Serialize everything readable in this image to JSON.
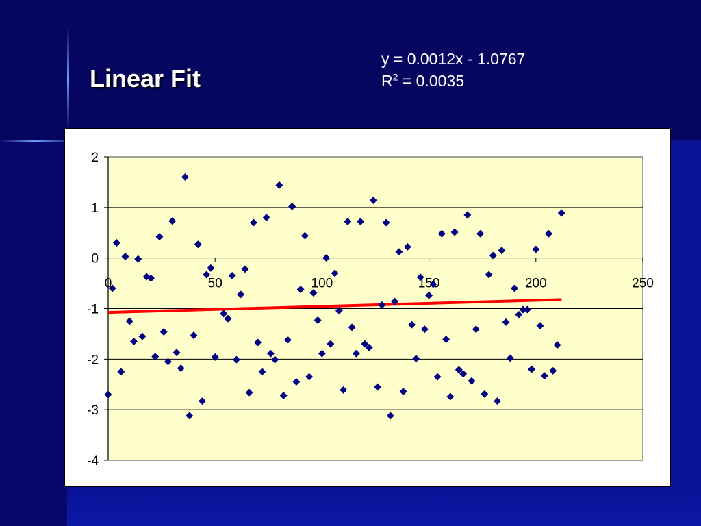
{
  "slide": {
    "title": "Linear Fit",
    "equation_line": "y = 0.0012x - 1.0767",
    "r2_prefix": "R",
    "r2_sup": "2",
    "r2_value": " = 0.0035"
  },
  "colors": {
    "slide_background": "#0a0a5e",
    "plot_background": "#ffffcc",
    "marker": "#000080",
    "trendline": "#ff0000",
    "title_text": "#ffffff"
  },
  "chart_data": {
    "type": "scatter",
    "title": "",
    "xlabel": "",
    "ylabel": "",
    "xlim": [
      0,
      250
    ],
    "ylim": [
      -4,
      2
    ],
    "x_ticks": [
      "0",
      "50",
      "100",
      "150",
      "200",
      "250"
    ],
    "y_ticks": [
      "2",
      "1",
      "0",
      "-1",
      "-2",
      "-3",
      "-4"
    ],
    "grid": "horizontal",
    "legend": "none",
    "marker_shape": "diamond",
    "points": [
      [
        0,
        -2.7
      ],
      [
        2,
        -0.6
      ],
      [
        4,
        0.3
      ],
      [
        6,
        -2.25
      ],
      [
        8,
        0.03
      ],
      [
        10,
        -1.25
      ],
      [
        12,
        -1.65
      ],
      [
        14,
        -0.02
      ],
      [
        16,
        -1.55
      ],
      [
        18,
        -0.37
      ],
      [
        20,
        -0.4
      ],
      [
        22,
        -1.95
      ],
      [
        24,
        0.42
      ],
      [
        26,
        -1.46
      ],
      [
        28,
        -2.05
      ],
      [
        30,
        0.73
      ],
      [
        32,
        -1.87
      ],
      [
        34,
        -2.18
      ],
      [
        36,
        1.6
      ],
      [
        38,
        -3.12
      ],
      [
        40,
        -1.53
      ],
      [
        42,
        0.27
      ],
      [
        44,
        -2.83
      ],
      [
        46,
        -0.33
      ],
      [
        48,
        -0.2
      ],
      [
        50,
        -1.96
      ],
      [
        54,
        -1.1
      ],
      [
        56,
        -1.2
      ],
      [
        58,
        -0.35
      ],
      [
        60,
        -2.01
      ],
      [
        62,
        -0.72
      ],
      [
        64,
        -0.22
      ],
      [
        66,
        -2.66
      ],
      [
        68,
        0.7
      ],
      [
        70,
        -1.67
      ],
      [
        72,
        -2.25
      ],
      [
        74,
        0.8
      ],
      [
        76,
        -1.89
      ],
      [
        78,
        -2.01
      ],
      [
        80,
        1.44
      ],
      [
        82,
        -2.72
      ],
      [
        84,
        -1.62
      ],
      [
        86,
        1.02
      ],
      [
        88,
        -2.45
      ],
      [
        90,
        -0.62
      ],
      [
        92,
        0.44
      ],
      [
        94,
        -2.35
      ],
      [
        96,
        -0.69
      ],
      [
        98,
        -1.23
      ],
      [
        100,
        -1.89
      ],
      [
        102,
        0.0
      ],
      [
        104,
        -1.7
      ],
      [
        106,
        -0.3
      ],
      [
        108,
        -1.04
      ],
      [
        110,
        -2.61
      ],
      [
        112,
        0.72
      ],
      [
        114,
        -1.37
      ],
      [
        116,
        -1.89
      ],
      [
        118,
        0.72
      ],
      [
        120,
        -1.7
      ],
      [
        122,
        -1.77
      ],
      [
        124,
        1.14
      ],
      [
        126,
        -2.55
      ],
      [
        128,
        -0.93
      ],
      [
        130,
        0.7
      ],
      [
        132,
        -3.12
      ],
      [
        134,
        -0.86
      ],
      [
        136,
        0.12
      ],
      [
        138,
        -2.64
      ],
      [
        140,
        0.22
      ],
      [
        142,
        -1.32
      ],
      [
        144,
        -1.99
      ],
      [
        146,
        -0.38
      ],
      [
        148,
        -1.41
      ],
      [
        150,
        -0.74
      ],
      [
        152,
        -0.52
      ],
      [
        154,
        -2.35
      ],
      [
        156,
        0.48
      ],
      [
        158,
        -1.61
      ],
      [
        160,
        -2.74
      ],
      [
        162,
        0.51
      ],
      [
        164,
        -2.21
      ],
      [
        166,
        -2.29
      ],
      [
        168,
        0.85
      ],
      [
        170,
        -2.43
      ],
      [
        172,
        -1.41
      ],
      [
        174,
        0.48
      ],
      [
        176,
        -2.69
      ],
      [
        178,
        -0.33
      ],
      [
        180,
        0.05
      ],
      [
        182,
        -2.83
      ],
      [
        184,
        0.15
      ],
      [
        186,
        -1.27
      ],
      [
        188,
        -1.98
      ],
      [
        190,
        -0.6
      ],
      [
        192,
        -1.12
      ],
      [
        194,
        -1.02
      ],
      [
        196,
        -1.02
      ],
      [
        198,
        -2.2
      ],
      [
        200,
        0.17
      ],
      [
        202,
        -1.34
      ],
      [
        204,
        -2.33
      ],
      [
        206,
        0.48
      ],
      [
        208,
        -2.23
      ],
      [
        210,
        -1.72
      ],
      [
        212,
        0.89
      ]
    ],
    "trendline": {
      "slope": 0.0012,
      "intercept": -1.0767,
      "x_start": 0,
      "x_end": 212
    }
  }
}
